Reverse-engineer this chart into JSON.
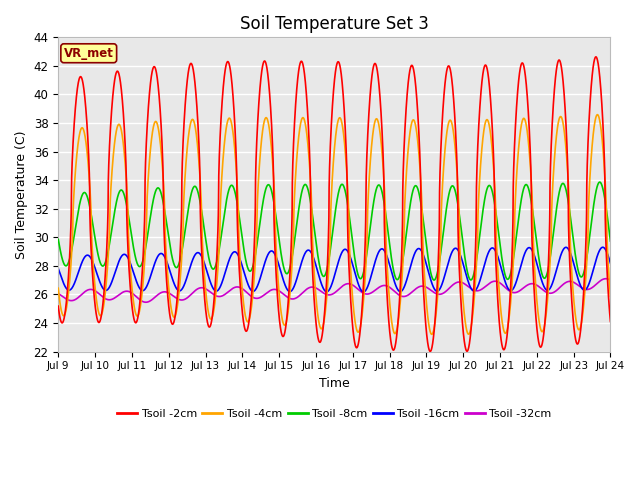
{
  "title": "Soil Temperature Set 3",
  "xlabel": "Time",
  "ylabel": "Soil Temperature (C)",
  "ylim": [
    22,
    44
  ],
  "yticks": [
    22,
    24,
    26,
    28,
    30,
    32,
    34,
    36,
    38,
    40,
    42,
    44
  ],
  "xtick_labels": [
    "Jul 9",
    "Jul 10",
    "Jul 11",
    "Jul 12",
    "Jul 13",
    "Jul 14",
    "Jul 15",
    "Jul 16",
    "Jul 17",
    "Jul 18",
    "Jul 19",
    "Jul 20",
    "Jul 21",
    "Jul 22",
    "Jul 23",
    "Jul 24"
  ],
  "bg_color": "#e8e8e8",
  "grid_color": "#ffffff",
  "lines": {
    "Tsoil -2cm": {
      "color": "#ff0000",
      "lw": 1.2
    },
    "Tsoil -4cm": {
      "color": "#ffa500",
      "lw": 1.2
    },
    "Tsoil -8cm": {
      "color": "#00cc00",
      "lw": 1.2
    },
    "Tsoil -16cm": {
      "color": "#0000ff",
      "lw": 1.2
    },
    "Tsoil -32cm": {
      "color": "#cc00cc",
      "lw": 1.2
    }
  },
  "watermark": "VR_met",
  "watermark_color": "#8b0000",
  "watermark_bg": "#ffff99",
  "legend_colors": [
    "#ff0000",
    "#ffa500",
    "#00cc00",
    "#0000ff",
    "#cc00cc"
  ],
  "legend_labels": [
    "Tsoil -2cm",
    "Tsoil -4cm",
    "Tsoil -8cm",
    "Tsoil -16cm",
    "Tsoil -32cm"
  ]
}
